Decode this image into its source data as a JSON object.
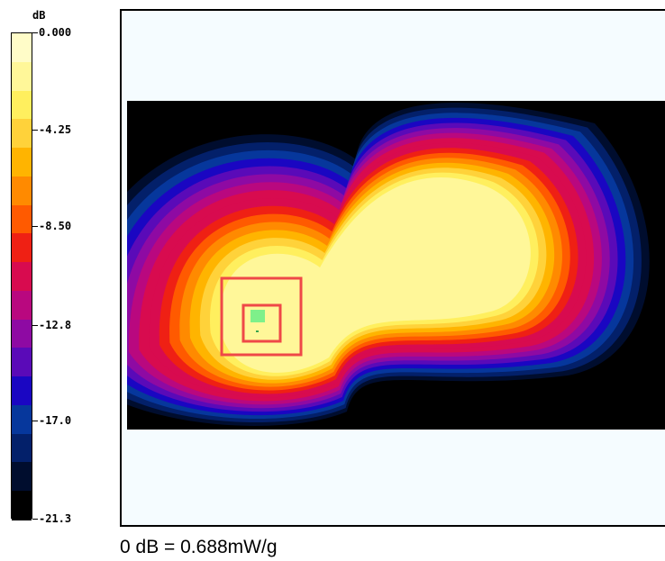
{
  "chart_data": {
    "type": "heatmap",
    "colorbar": {
      "unit": "dB",
      "ticks": [
        "0.000",
        "-4.25",
        "-8.50",
        "-12.8",
        "-17.0",
        "-21.3"
      ],
      "range": [
        -21.3,
        0
      ],
      "colors": [
        "#fffcc8",
        "#fff799",
        "#ffef5e",
        "#ffd23a",
        "#ffb400",
        "#ff8a00",
        "#ff5a00",
        "#ef2014",
        "#d80b4f",
        "#b9087f",
        "#8e0aa3",
        "#5a0ab8",
        "#1a06c2",
        "#06379c",
        "#03206a",
        "#000d2e",
        "#000000"
      ]
    },
    "contour_levels_dB": [
      -1.25,
      -2.5,
      -3.75,
      -5.0,
      -6.25,
      -7.5,
      -8.75,
      -10.0,
      -11.25,
      -12.5,
      -13.75,
      -15.0,
      -16.25,
      -17.5,
      -18.75,
      -20.0
    ],
    "peak_value_dB": 0,
    "reference_value": "0 dB = 0.688mW/g"
  }
}
